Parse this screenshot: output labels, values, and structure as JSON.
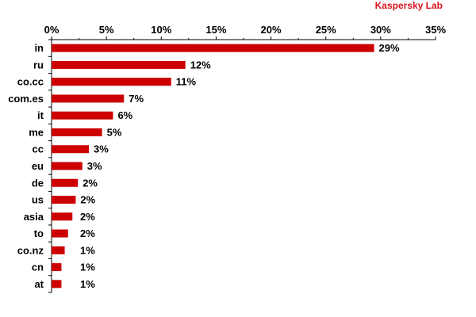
{
  "brand": {
    "label": "Kaspersky Lab",
    "color": "#d9141e"
  },
  "chart_data": {
    "type": "bar",
    "orientation": "horizontal",
    "categories": [
      "in",
      "ru",
      "co.cc",
      "com.es",
      "it",
      "me",
      "cc",
      "eu",
      "de",
      "us",
      "asia",
      "to",
      "co.nz",
      "cn",
      "at"
    ],
    "values": [
      29.4,
      12.2,
      10.9,
      6.6,
      5.6,
      4.6,
      3.4,
      2.8,
      2.4,
      2.2,
      1.9,
      1.5,
      1.2,
      0.9,
      0.9
    ],
    "data_labels": [
      "29%",
      "12%",
      "11%",
      "7%",
      "6%",
      "5%",
      "3%",
      "3%",
      "2%",
      "2%",
      "2%",
      "2%",
      "1%",
      "1%",
      "1%"
    ],
    "xlim": [
      0,
      35
    ],
    "x_ticks": [
      0,
      5,
      10,
      15,
      20,
      25,
      30,
      35
    ],
    "x_tick_labels": [
      "0%",
      "5%",
      "10%",
      "15%",
      "20%",
      "25%",
      "30%",
      "35%"
    ],
    "x_axis_position": "top",
    "grid": false,
    "bar_color": "#cc0000",
    "title": "",
    "xlabel": "",
    "ylabel": ""
  }
}
